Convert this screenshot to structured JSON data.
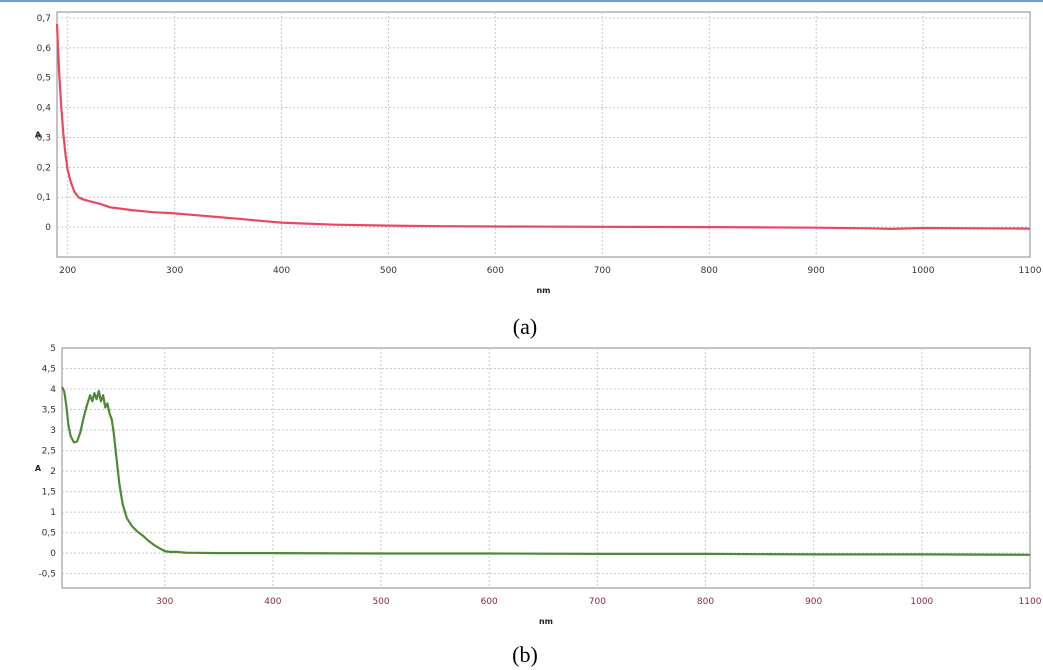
{
  "chart_data": [
    {
      "type": "line",
      "panel_label": "(a)",
      "xlabel": "nm",
      "ylabel": "A",
      "xlim": [
        190,
        1100
      ],
      "ylim": [
        -0.1,
        0.72
      ],
      "x_ticks": [
        "200",
        "300",
        "400",
        "500",
        "600",
        "700",
        "800",
        "900",
        "1000",
        "1100"
      ],
      "y_ticks": [
        "0,7",
        "0,6",
        "0,5",
        "0,4",
        "0,3",
        "0,2",
        "0,1",
        "0"
      ],
      "grid": true,
      "line_color": "#e8495e",
      "x_tick_color": "#333333",
      "series": [
        {
          "x": [
            190,
            192,
            194,
            196,
            198,
            200,
            203,
            206,
            210,
            215,
            220,
            230,
            240,
            260,
            280,
            300,
            320,
            340,
            360,
            380,
            400,
            420,
            450,
            500,
            550,
            600,
            700,
            800,
            900,
            950,
            970,
            1000,
            1050,
            1100
          ],
          "y": [
            0.68,
            0.52,
            0.4,
            0.31,
            0.24,
            0.19,
            0.15,
            0.12,
            0.1,
            0.092,
            0.087,
            0.078,
            0.066,
            0.057,
            0.05,
            0.046,
            0.04,
            0.034,
            0.028,
            0.021,
            0.015,
            0.012,
            0.008,
            0.005,
            0.003,
            0.002,
            0.001,
            0.0,
            -0.002,
            -0.004,
            -0.006,
            -0.003,
            -0.004,
            -0.005
          ]
        }
      ]
    },
    {
      "type": "line",
      "panel_label": "(b)",
      "xlabel": "nm",
      "ylabel": "A",
      "xlim": [
        205,
        1100
      ],
      "ylim": [
        -0.85,
        5
      ],
      "x_ticks": [
        "300",
        "400",
        "500",
        "600",
        "700",
        "800",
        "900",
        "1000",
        "1100"
      ],
      "y_ticks": [
        "5",
        "4,5",
        "4",
        "3,5",
        "3",
        "2,5",
        "2",
        "1,5",
        "1",
        "0,5",
        "0",
        "-0,5"
      ],
      "grid": true,
      "line_color": "#4e8a36",
      "x_tick_color": "#8a2a3a",
      "series": [
        {
          "x": [
            205,
            207,
            209,
            211,
            213,
            216,
            219,
            222,
            225,
            228,
            231,
            233,
            235,
            237,
            239,
            241,
            243,
            245,
            247,
            249,
            251,
            253,
            255,
            258,
            261,
            265,
            270,
            275,
            280,
            285,
            290,
            295,
            300,
            305,
            310,
            320,
            350,
            400,
            500,
            600,
            700,
            800,
            900,
            1000,
            1100
          ],
          "y": [
            4.05,
            3.95,
            3.6,
            3.1,
            2.85,
            2.7,
            2.72,
            2.95,
            3.3,
            3.6,
            3.85,
            3.7,
            3.9,
            3.75,
            3.95,
            3.7,
            3.85,
            3.55,
            3.65,
            3.4,
            3.25,
            2.9,
            2.4,
            1.7,
            1.2,
            0.85,
            0.65,
            0.52,
            0.42,
            0.3,
            0.2,
            0.12,
            0.05,
            0.03,
            0.03,
            0.01,
            0.0,
            0.0,
            -0.01,
            -0.01,
            -0.02,
            -0.02,
            -0.03,
            -0.03,
            -0.04
          ]
        }
      ]
    }
  ]
}
